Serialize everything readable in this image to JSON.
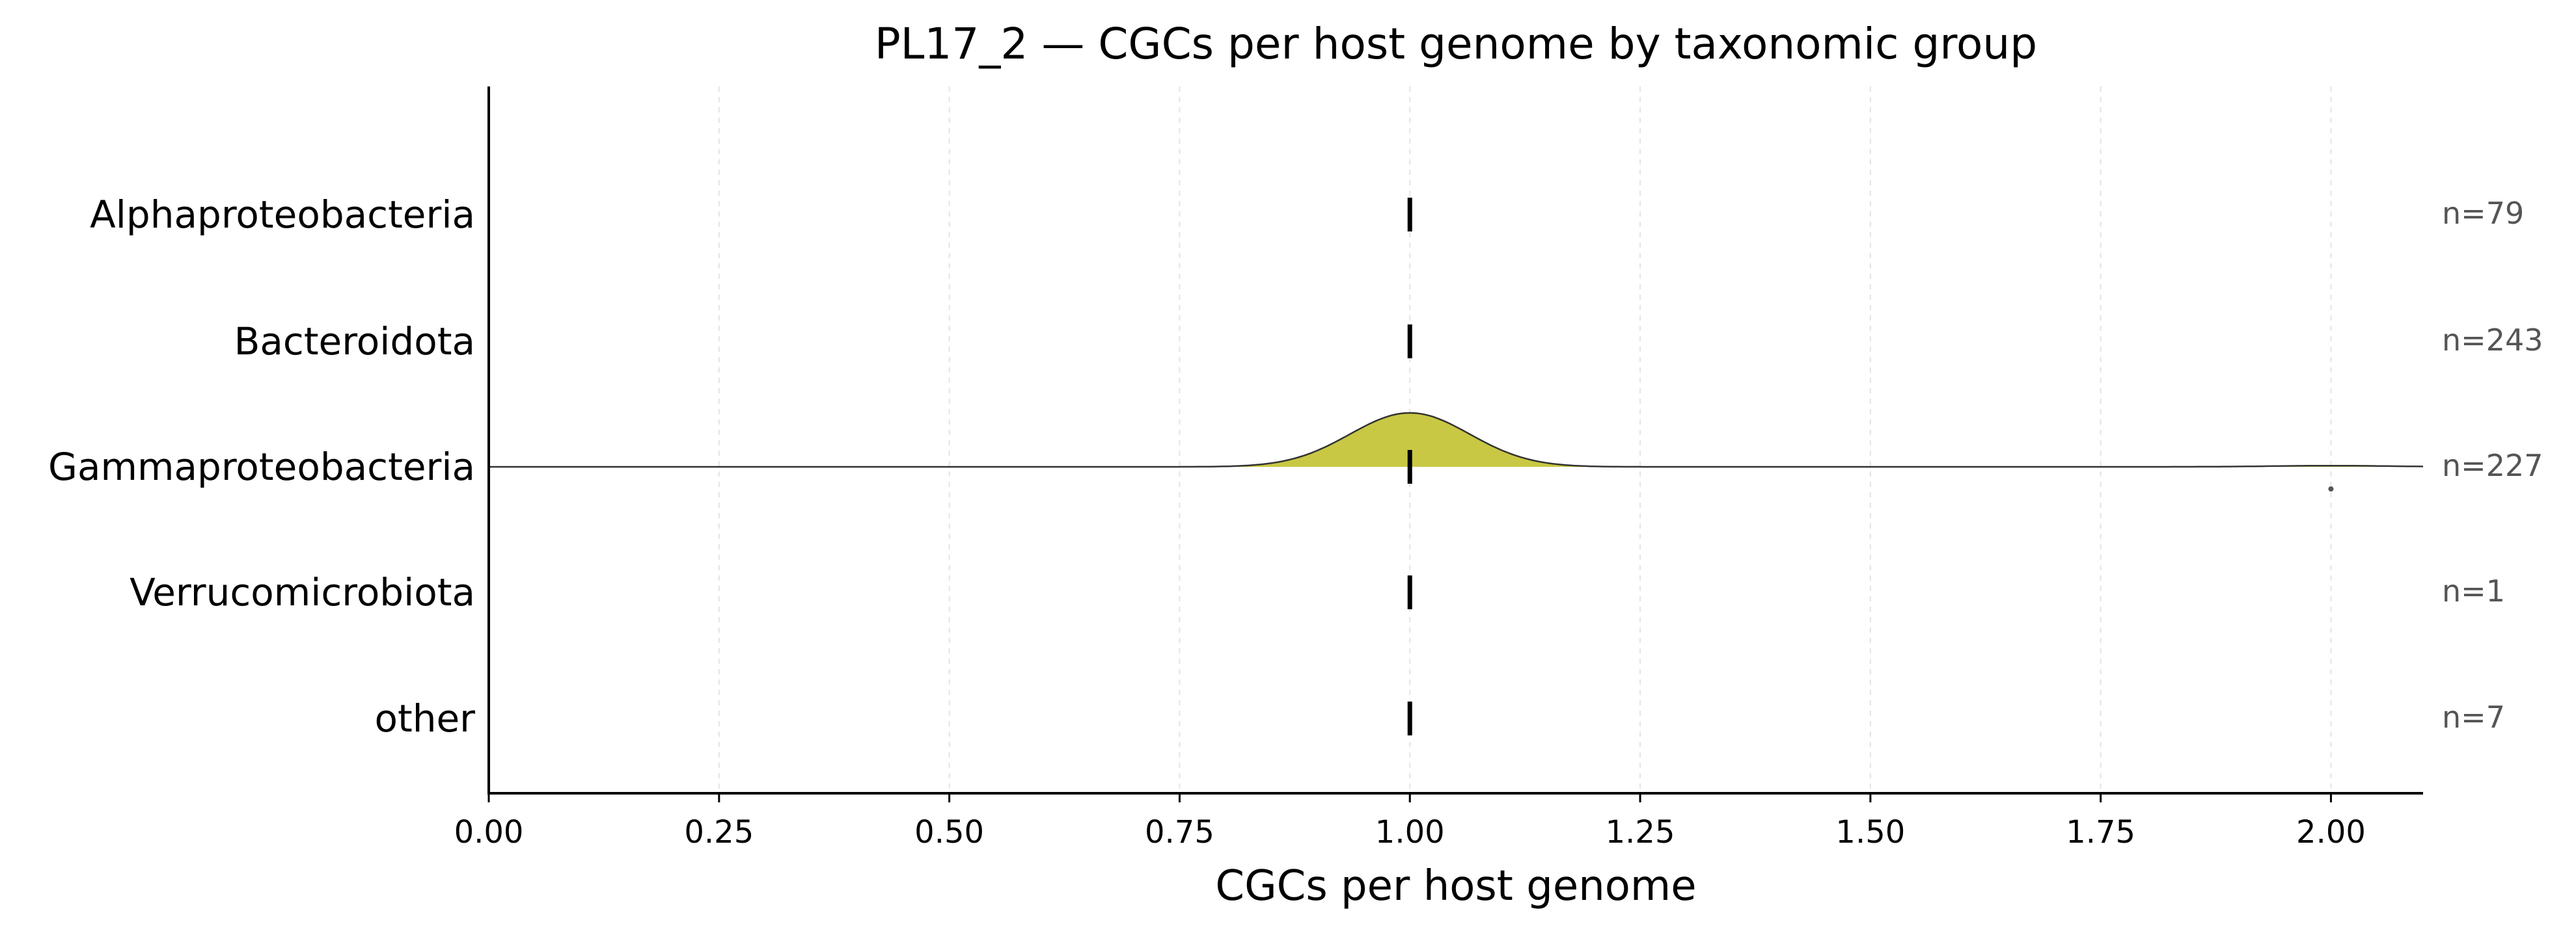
{
  "chart_data": {
    "type": "ridgeline",
    "title": "PL17_2 — CGCs per host genome by taxonomic group",
    "xlabel": "CGCs per host genome",
    "xlim": [
      0,
      2.1
    ],
    "x_ticks": [
      "0.00",
      "0.25",
      "0.50",
      "0.75",
      "1.00",
      "1.25",
      "1.50",
      "1.75",
      "2.00"
    ],
    "x_tick_values": [
      0,
      0.25,
      0.5,
      0.75,
      1.0,
      1.25,
      1.5,
      1.75,
      2.0
    ],
    "grid": "vertical dashed",
    "fill_color": "#c8c844",
    "series": [
      {
        "name": "Alphaproteobacteria",
        "n_label": "n=79",
        "median": 1.0,
        "density": "none"
      },
      {
        "name": "Bacteroidota",
        "n_label": "n=243",
        "median": 1.0,
        "density": "none"
      },
      {
        "name": "Gammaproteobacteria",
        "n_label": "n=227",
        "median": 1.0,
        "density": "kde",
        "kde_peaks": [
          {
            "center": 1.0,
            "sd": 0.065,
            "height": 1.0
          },
          {
            "center": 2.0,
            "sd": 0.065,
            "height": 0.022
          }
        ],
        "outliers": [
          2.0
        ]
      },
      {
        "name": "Verrucomicrobiota",
        "n_label": "n=1",
        "median": 1.0,
        "density": "none"
      },
      {
        "name": "other",
        "n_label": "n=7",
        "median": 1.0,
        "density": "none"
      }
    ]
  }
}
